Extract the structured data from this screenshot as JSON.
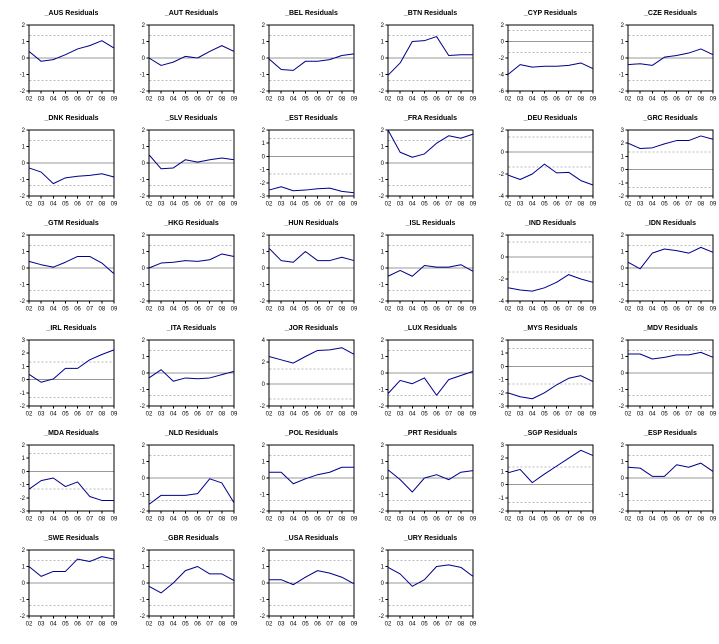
{
  "chart_data": {
    "type": "line",
    "description": "Grid of per-country residual line plots (6 columns), navy residual line, solid gray zero line, dashed gray standard-error bands",
    "layout": {
      "columns": 6,
      "rows": 6,
      "legend": "none",
      "grid": "zero line solid, se bands dashed"
    },
    "x_categories": [
      "02",
      "03",
      "04",
      "05",
      "06",
      "07",
      "08",
      "09"
    ],
    "colors": {
      "line": "#00008b",
      "zero_line": "#999999",
      "band_line": "#bbbbbb",
      "frame": "#000000",
      "background": "#ffffff"
    },
    "se_band": 1.35,
    "charts": [
      {
        "title": "_AUS Residuals",
        "ylim": [
          -2,
          2
        ],
        "yticks": [
          2,
          1,
          0,
          -1,
          -2
        ],
        "values": [
          0.4,
          -0.2,
          -0.1,
          0.2,
          0.55,
          0.75,
          1.05,
          0.6
        ]
      },
      {
        "title": "_AUT Residuals",
        "ylim": [
          -2,
          2
        ],
        "yticks": [
          2,
          1,
          0,
          -1,
          -2
        ],
        "values": [
          0.0,
          -0.45,
          -0.25,
          0.1,
          0.0,
          0.4,
          0.75,
          0.4
        ]
      },
      {
        "title": "_BEL Residuals",
        "ylim": [
          -2,
          2
        ],
        "yticks": [
          2,
          1,
          0,
          -1,
          -2
        ],
        "values": [
          -0.05,
          -0.7,
          -0.75,
          -0.2,
          -0.2,
          -0.1,
          0.15,
          0.25
        ]
      },
      {
        "title": "_BTN Residuals",
        "ylim": [
          -2,
          2
        ],
        "yticks": [
          2,
          1,
          0,
          -1,
          -2
        ],
        "values": [
          -1.05,
          -0.3,
          1.0,
          1.05,
          1.3,
          0.15,
          0.2,
          0.2
        ]
      },
      {
        "title": "_CYP Residuals",
        "ylim": [
          -6,
          2
        ],
        "yticks": [
          2,
          0,
          -2,
          -4,
          -6
        ],
        "values": [
          -4.0,
          -2.8,
          -3.1,
          -3.0,
          -3.0,
          -2.9,
          -2.6,
          -3.3
        ]
      },
      {
        "title": "_CZE Residuals",
        "ylim": [
          -2,
          2
        ],
        "yticks": [
          2,
          1,
          0,
          -1,
          -2
        ],
        "values": [
          -0.4,
          -0.35,
          -0.45,
          0.05,
          0.15,
          0.3,
          0.55,
          0.2
        ]
      },
      {
        "title": "_DNK Residuals",
        "ylim": [
          -2,
          2
        ],
        "yticks": [
          2,
          1,
          0,
          -1,
          -2
        ],
        "values": [
          -0.3,
          -0.55,
          -1.25,
          -0.9,
          -0.8,
          -0.75,
          -0.65,
          -0.85
        ]
      },
      {
        "title": "_SLV Residuals",
        "ylim": [
          -2,
          2
        ],
        "yticks": [
          2,
          1,
          0,
          -1,
          -2
        ],
        "values": [
          0.5,
          -0.35,
          -0.3,
          0.2,
          0.05,
          0.2,
          0.3,
          0.2
        ]
      },
      {
        "title": "_EST Residuals",
        "ylim": [
          -3,
          2
        ],
        "yticks": [
          2,
          1,
          0,
          -1,
          -2,
          -3
        ],
        "values": [
          -2.55,
          -2.3,
          -2.6,
          -2.55,
          -2.45,
          -2.4,
          -2.65,
          -2.75
        ]
      },
      {
        "title": "_FRA Residuals",
        "ylim": [
          -2,
          2
        ],
        "yticks": [
          2,
          1,
          0,
          -1,
          -2
        ],
        "values": [
          2.0,
          0.65,
          0.35,
          0.55,
          1.2,
          1.65,
          1.5,
          1.75
        ]
      },
      {
        "title": "_DEU Residuals",
        "ylim": [
          -4,
          2
        ],
        "yticks": [
          2,
          0,
          -2,
          -4
        ],
        "values": [
          -2.1,
          -2.5,
          -2.0,
          -1.1,
          -1.9,
          -1.85,
          -2.6,
          -3.0
        ]
      },
      {
        "title": "_GRC Residuals",
        "ylim": [
          -2,
          3
        ],
        "yticks": [
          3,
          2,
          1,
          0,
          -1,
          -2
        ],
        "values": [
          2.0,
          1.6,
          1.65,
          1.95,
          2.2,
          2.2,
          2.55,
          2.3
        ]
      },
      {
        "title": "_GTM Residuals",
        "ylim": [
          -2,
          2
        ],
        "yticks": [
          2,
          1,
          0,
          -1,
          -2
        ],
        "values": [
          0.4,
          0.2,
          0.05,
          0.35,
          0.7,
          0.7,
          0.3,
          -0.35
        ]
      },
      {
        "title": "_HKG Residuals",
        "ylim": [
          -2,
          2
        ],
        "yticks": [
          2,
          1,
          0,
          -1,
          -2
        ],
        "values": [
          0.0,
          0.3,
          0.35,
          0.45,
          0.4,
          0.5,
          0.85,
          0.7
        ]
      },
      {
        "title": "_HUN Residuals",
        "ylim": [
          -2,
          2
        ],
        "yticks": [
          2,
          1,
          0,
          -1,
          -2
        ],
        "values": [
          1.2,
          0.45,
          0.35,
          1.0,
          0.45,
          0.45,
          0.65,
          0.45
        ]
      },
      {
        "title": "_ISL Residuals",
        "ylim": [
          -2,
          2
        ],
        "yticks": [
          2,
          1,
          0,
          -1,
          -2
        ],
        "values": [
          -0.5,
          -0.15,
          -0.5,
          0.15,
          0.05,
          0.05,
          0.2,
          -0.2
        ]
      },
      {
        "title": "_IND Residuals",
        "ylim": [
          -4,
          2
        ],
        "yticks": [
          2,
          0,
          -2,
          -4
        ],
        "values": [
          -2.8,
          -3.0,
          -3.1,
          -2.8,
          -2.3,
          -1.6,
          -2.0,
          -2.3
        ]
      },
      {
        "title": "_IDN Residuals",
        "ylim": [
          -2,
          2
        ],
        "yticks": [
          2,
          1,
          0,
          -1,
          -2
        ],
        "values": [
          0.35,
          -0.05,
          0.9,
          1.15,
          1.05,
          0.9,
          1.25,
          0.95
        ]
      },
      {
        "title": "_IRL Residuals",
        "ylim": [
          -2,
          3
        ],
        "yticks": [
          3,
          2,
          1,
          0,
          -1,
          -2
        ],
        "values": [
          0.4,
          -0.2,
          0.05,
          0.85,
          0.85,
          1.5,
          1.9,
          2.25
        ]
      },
      {
        "title": "_ITA Residuals",
        "ylim": [
          -2,
          2
        ],
        "yticks": [
          2,
          1,
          0,
          -1,
          -2
        ],
        "values": [
          -0.3,
          0.2,
          -0.5,
          -0.3,
          -0.35,
          -0.3,
          -0.1,
          0.1
        ]
      },
      {
        "title": "_JOR Residuals",
        "ylim": [
          -2,
          4
        ],
        "yticks": [
          4,
          2,
          0,
          -2
        ],
        "values": [
          2.5,
          2.2,
          1.9,
          2.5,
          3.05,
          3.1,
          3.3,
          2.7
        ]
      },
      {
        "title": "_LUX Residuals",
        "ylim": [
          -2,
          2
        ],
        "yticks": [
          2,
          1,
          0,
          -1,
          -2
        ],
        "values": [
          -1.25,
          -0.45,
          -0.65,
          -0.3,
          -1.35,
          -0.4,
          -0.15,
          0.1
        ]
      },
      {
        "title": "_MYS Residuals",
        "ylim": [
          -3,
          2
        ],
        "yticks": [
          2,
          1,
          0,
          -1,
          -2,
          -3
        ],
        "values": [
          -2.0,
          -2.3,
          -2.45,
          -2.0,
          -1.4,
          -0.9,
          -0.7,
          -1.15
        ]
      },
      {
        "title": "_MDV Residuals",
        "ylim": [
          -2,
          2
        ],
        "yticks": [
          2,
          1,
          0,
          -1,
          -2
        ],
        "values": [
          1.15,
          1.15,
          0.85,
          0.95,
          1.1,
          1.1,
          1.25,
          0.95
        ]
      },
      {
        "title": "_MDA Residuals",
        "ylim": [
          -3,
          2
        ],
        "yticks": [
          2,
          1,
          0,
          -1,
          -2,
          -3
        ],
        "values": [
          -1.35,
          -0.7,
          -0.5,
          -1.15,
          -0.8,
          -1.9,
          -2.2,
          -2.2
        ]
      },
      {
        "title": "_NLD Residuals",
        "ylim": [
          -2,
          2
        ],
        "yticks": [
          2,
          1,
          0,
          -1,
          -2
        ],
        "values": [
          -1.6,
          -1.05,
          -1.05,
          -1.05,
          -0.95,
          -0.05,
          -0.3,
          -1.5
        ]
      },
      {
        "title": "_POL Residuals",
        "ylim": [
          -2,
          2
        ],
        "yticks": [
          2,
          1,
          0,
          -1,
          -2
        ],
        "values": [
          0.35,
          0.35,
          -0.35,
          -0.05,
          0.2,
          0.35,
          0.65,
          0.65
        ]
      },
      {
        "title": "_PRT Residuals",
        "ylim": [
          -2,
          2
        ],
        "yticks": [
          2,
          1,
          0,
          -1,
          -2
        ],
        "values": [
          0.5,
          -0.1,
          -0.85,
          0.0,
          0.2,
          -0.1,
          0.35,
          0.45
        ]
      },
      {
        "title": "_SGP Residuals",
        "ylim": [
          -2,
          3
        ],
        "yticks": [
          3,
          2,
          1,
          0,
          -1,
          -2
        ],
        "values": [
          0.9,
          1.15,
          0.15,
          0.8,
          1.4,
          2.0,
          2.6,
          2.2
        ]
      },
      {
        "title": "_ESP Residuals",
        "ylim": [
          -2,
          2
        ],
        "yticks": [
          2,
          1,
          0,
          -1,
          -2
        ],
        "values": [
          0.65,
          0.6,
          0.1,
          0.1,
          0.8,
          0.65,
          0.9,
          0.4
        ]
      },
      {
        "title": "_SWE Residuals",
        "ylim": [
          -2,
          2
        ],
        "yticks": [
          2,
          1,
          0,
          -1,
          -2
        ],
        "values": [
          1.0,
          0.4,
          0.7,
          0.7,
          1.45,
          1.3,
          1.6,
          1.45
        ]
      },
      {
        "title": "_GBR Residuals",
        "ylim": [
          -2,
          2
        ],
        "yticks": [
          2,
          1,
          0,
          -1,
          -2
        ],
        "values": [
          -0.2,
          -0.6,
          0.0,
          0.75,
          1.0,
          0.55,
          0.55,
          0.15
        ]
      },
      {
        "title": "_USA Residuals",
        "ylim": [
          -2,
          2
        ],
        "yticks": [
          2,
          1,
          0,
          -1,
          -2
        ],
        "values": [
          0.2,
          0.2,
          -0.1,
          0.35,
          0.75,
          0.6,
          0.35,
          -0.05
        ]
      },
      {
        "title": "_URY Residuals",
        "ylim": [
          -2,
          2
        ],
        "yticks": [
          2,
          1,
          0,
          -1,
          -2
        ],
        "values": [
          0.95,
          0.55,
          -0.2,
          0.2,
          1.0,
          1.1,
          0.95,
          0.4
        ]
      }
    ]
  }
}
